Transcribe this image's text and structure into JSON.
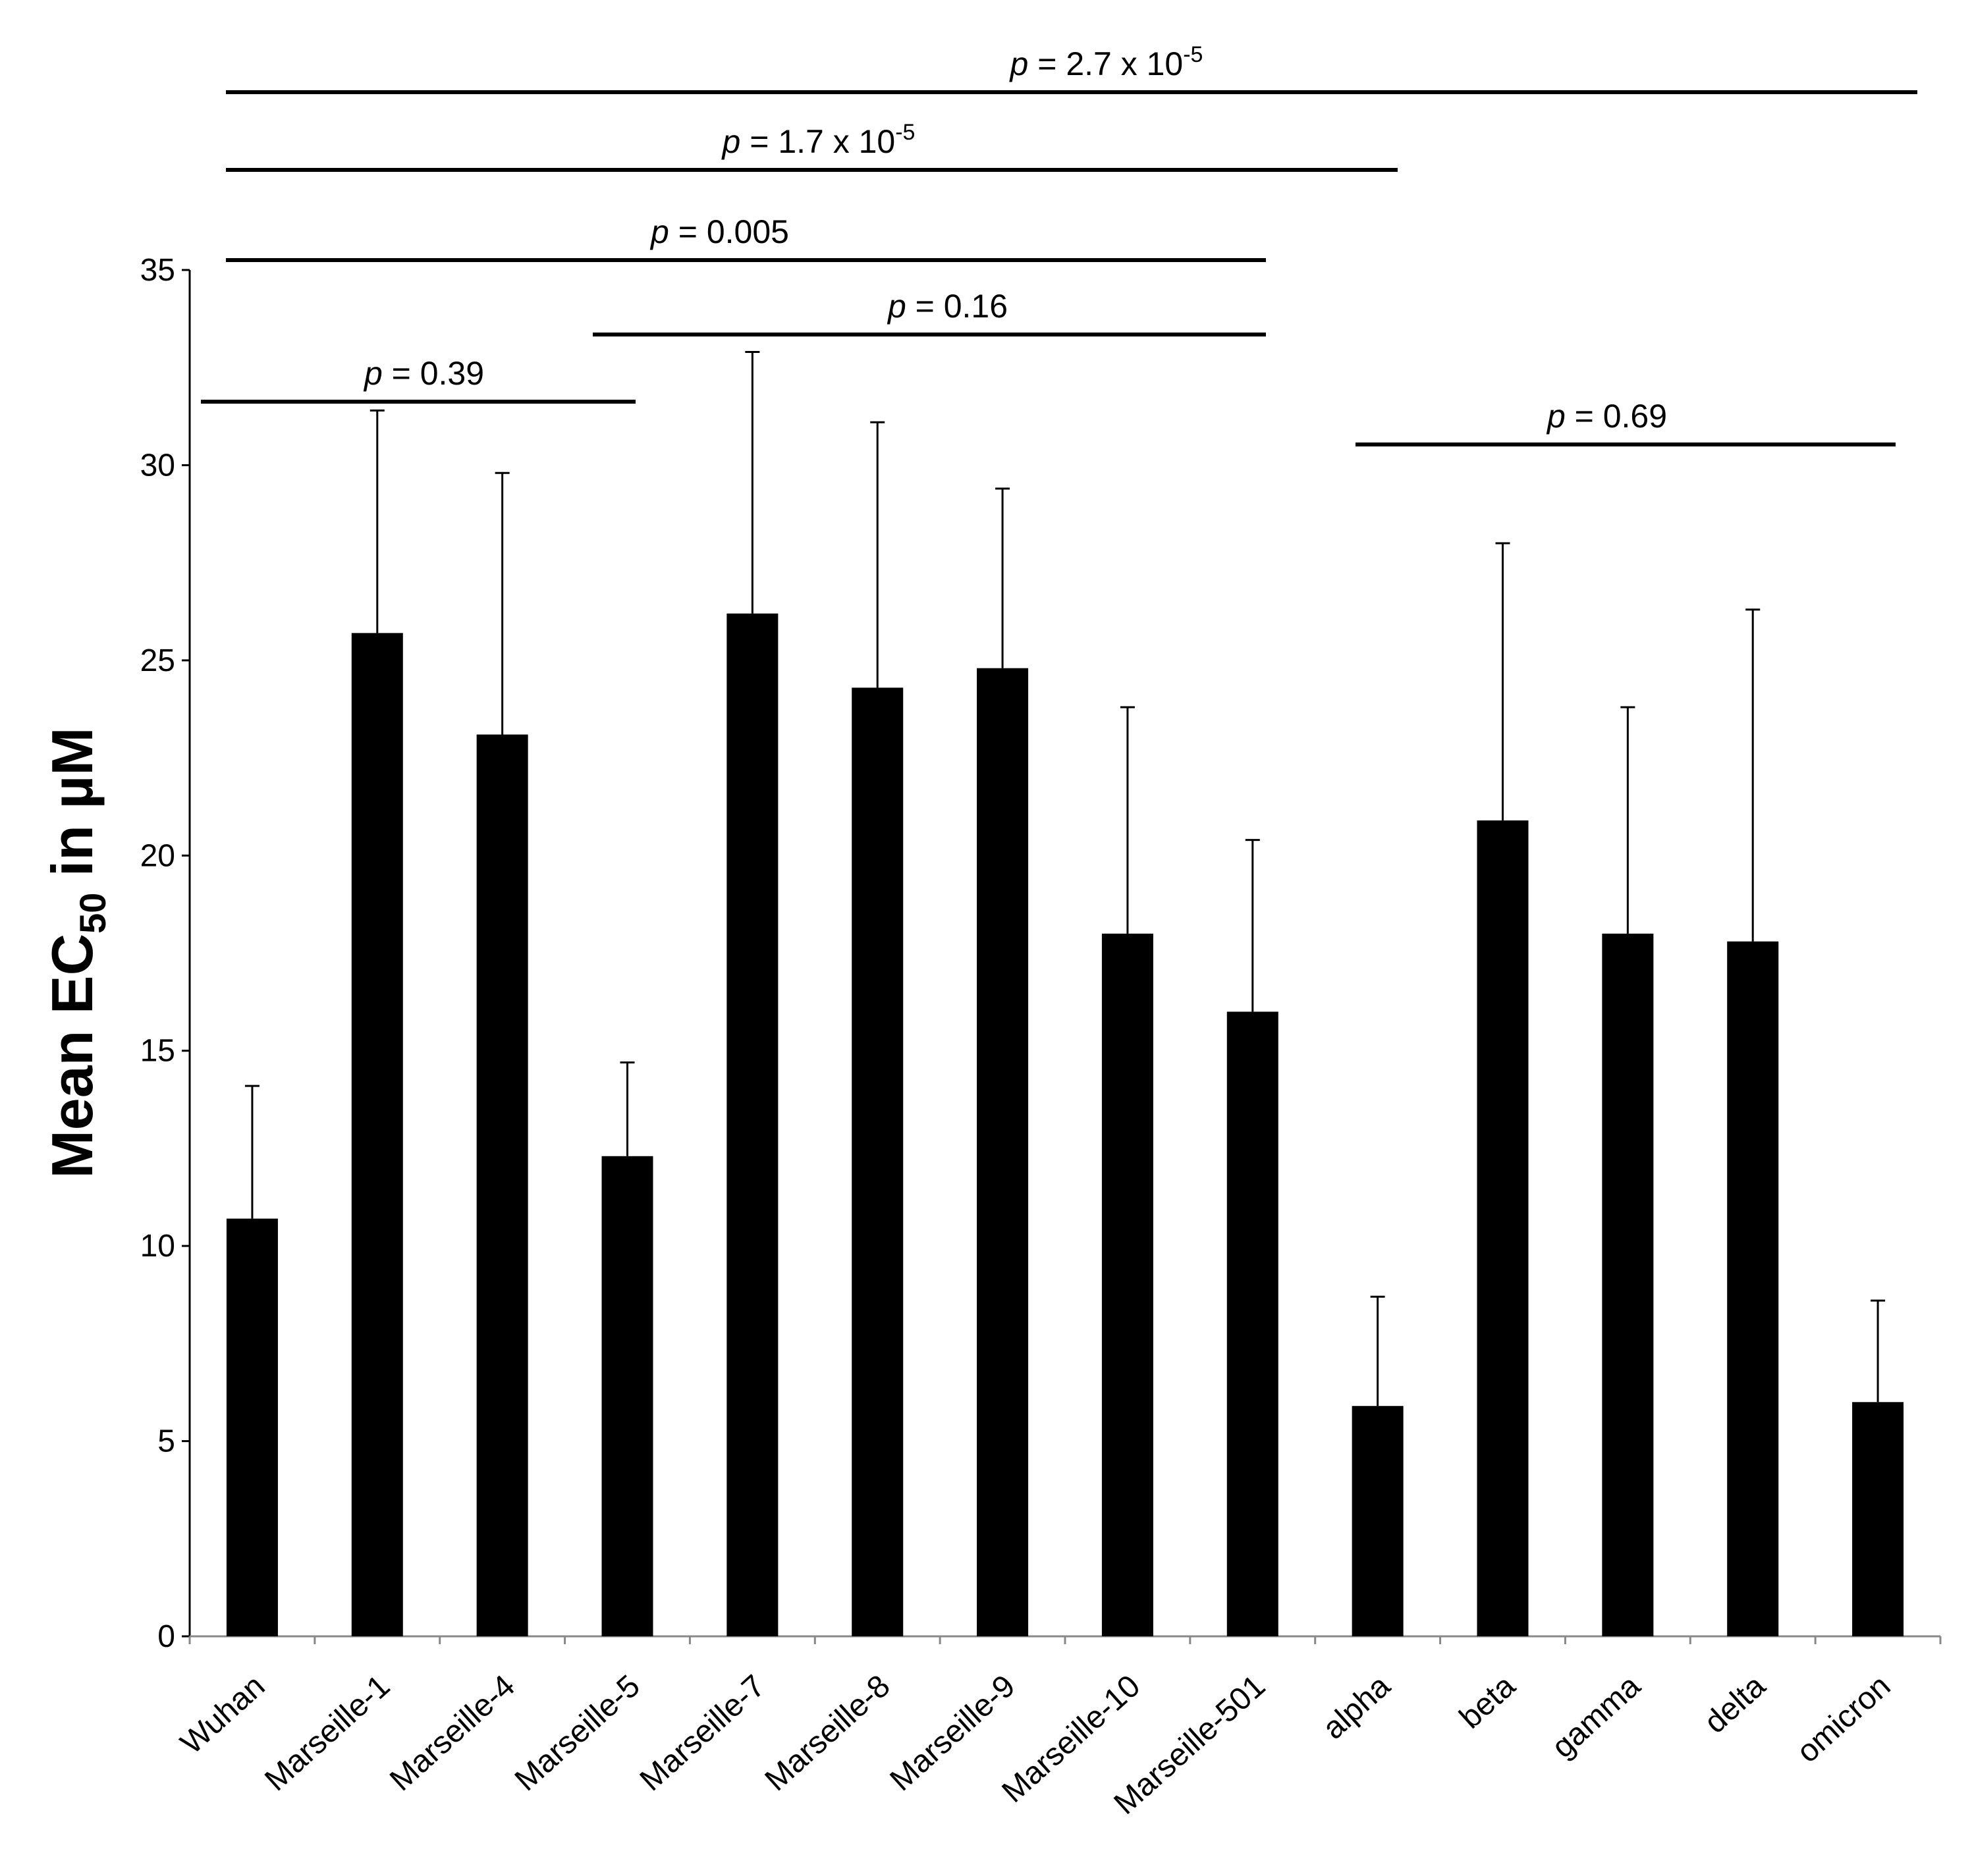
{
  "chart_data": {
    "type": "bar",
    "title": "",
    "xlabel": "",
    "ylabel": "Mean EC50 in µM",
    "ylabel_parts": {
      "main": "Mean EC",
      "subscript": "50",
      "suffix": " in µM"
    },
    "ylim": [
      0,
      35
    ],
    "yticks": [
      0,
      5,
      10,
      15,
      20,
      25,
      30,
      35
    ],
    "grid": false,
    "legend": "none",
    "bar_color": "#000000",
    "categories": [
      "Wuhan",
      "Marseille-1",
      "Marseille-4",
      "Marseille-5",
      "Marseille-7",
      "Marseille-8",
      "Marseille-9",
      "Marseille-10",
      "Marseille-501",
      "alpha",
      "beta",
      "gamma",
      "delta",
      "omicron"
    ],
    "values": [
      10.7,
      25.7,
      23.1,
      12.3,
      26.2,
      24.3,
      24.8,
      18.0,
      16.0,
      5.9,
      20.9,
      18.0,
      17.8,
      6.0
    ],
    "error_upper": [
      14.1,
      31.4,
      29.8,
      14.7,
      32.9,
      31.1,
      29.4,
      23.8,
      20.4,
      8.7,
      28.0,
      23.8,
      26.3,
      8.6
    ],
    "significance": [
      {
        "from": "Wuhan",
        "to": "omicron",
        "p_italic": "p",
        "text": " = 2.7 x 10",
        "exp": "-5"
      },
      {
        "from": "Wuhan",
        "to": "alpha",
        "p_italic": "p",
        "text": " = 1.7 x 10",
        "exp": "-5"
      },
      {
        "from": "Wuhan",
        "to": "Marseille-501",
        "p_italic": "p",
        "text": " = 0.005",
        "exp": ""
      },
      {
        "from": "Marseille-5",
        "to": "Marseille-501",
        "p_italic": "p",
        "text": " = 0.16",
        "exp": ""
      },
      {
        "from": "Wuhan",
        "to": "Marseille-5",
        "p_italic": "p",
        "text": " = 0.39",
        "exp": ""
      },
      {
        "from": "alpha",
        "to": "omicron",
        "p_italic": "p",
        "text": " = 0.69",
        "exp": ""
      }
    ]
  }
}
